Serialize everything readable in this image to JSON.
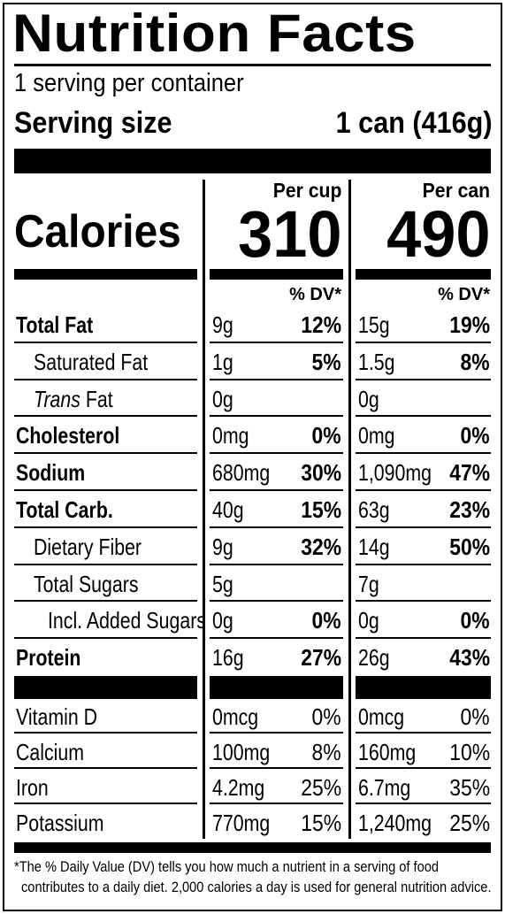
{
  "title": "Nutrition Facts",
  "servings_per_container": "1 serving per container",
  "serving_size_label": "Serving size",
  "serving_size_value": "1 can (416g)",
  "columns": {
    "cup_header": "Per cup",
    "can_header": "Per can",
    "dv_header": "% DV*"
  },
  "calories": {
    "label": "Calories",
    "per_cup": "310",
    "per_can": "490"
  },
  "nutrients": [
    {
      "name": "Total Fat",
      "bold": true,
      "cup_amt": "9g",
      "cup_dv": "12%",
      "can_amt": "15g",
      "can_dv": "19%"
    },
    {
      "name": "Saturated Fat",
      "cup_amt": "1g",
      "cup_dv": "5%",
      "can_amt": "1.5g",
      "can_dv": "8%"
    },
    {
      "name_italic": "Trans",
      "name_rest": " Fat",
      "cup_amt": "0g",
      "cup_dv": "",
      "can_amt": "0g",
      "can_dv": ""
    },
    {
      "name": "Cholesterol",
      "bold": true,
      "cup_amt": "0mg",
      "cup_dv": "0%",
      "can_amt": "0mg",
      "can_dv": "0%"
    },
    {
      "name": "Sodium",
      "bold": true,
      "cup_amt": "680mg",
      "cup_dv": "30%",
      "can_amt": "1,090mg",
      "can_dv": "47%"
    },
    {
      "name": "Total Carb.",
      "bold": true,
      "cup_amt": "40g",
      "cup_dv": "15%",
      "can_amt": "63g",
      "can_dv": "23%"
    },
    {
      "name": "Dietary Fiber",
      "cup_amt": "9g",
      "cup_dv": "32%",
      "can_amt": "14g",
      "can_dv": "50%"
    },
    {
      "name": "Total Sugars",
      "cup_amt": "5g",
      "cup_dv": "",
      "can_amt": "7g",
      "can_dv": ""
    },
    {
      "name": "Incl. Added Sugars",
      "cup_amt": "0g",
      "cup_dv": "0%",
      "can_amt": "0g",
      "can_dv": "0%"
    },
    {
      "name": "Protein",
      "bold": true,
      "cup_amt": "16g",
      "cup_dv": "27%",
      "can_amt": "26g",
      "can_dv": "43%"
    }
  ],
  "vitamins": [
    {
      "name": "Vitamin D",
      "cup_amt": "0mcg",
      "cup_dv": "0%",
      "can_amt": "0mcg",
      "can_dv": "0%"
    },
    {
      "name": "Calcium",
      "cup_amt": "100mg",
      "cup_dv": "8%",
      "can_amt": "160mg",
      "can_dv": "10%"
    },
    {
      "name": "Iron",
      "cup_amt": "4.2mg",
      "cup_dv": "25%",
      "can_amt": "6.7mg",
      "can_dv": "35%"
    },
    {
      "name": "Potassium",
      "cup_amt": "770mg",
      "cup_dv": "15%",
      "can_amt": "1,240mg",
      "can_dv": "25%"
    }
  ],
  "footnote": {
    "line1": "*The % Daily Value (DV) tells you how much a nutrient in a serving of food",
    "line2": "contributes to a daily diet. 2,000 calories a day is used for general nutrition advice."
  }
}
